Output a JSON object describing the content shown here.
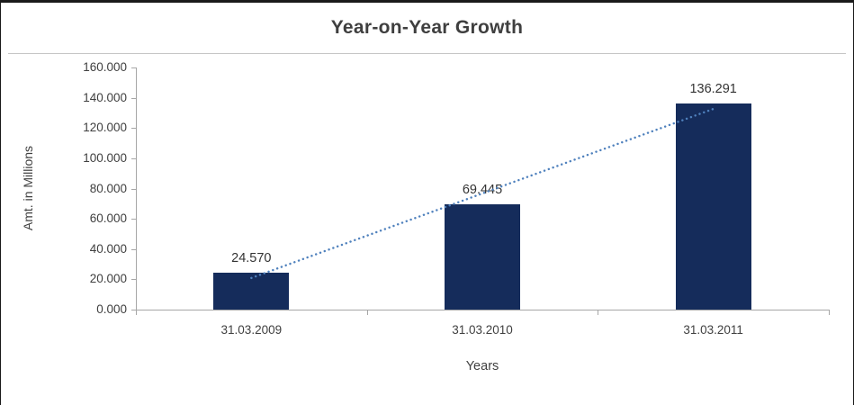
{
  "chart_data": {
    "type": "bar",
    "title": "Year-on-Year Growth",
    "categories": [
      "31.03.2009",
      "31.03.2010",
      "31.03.2011"
    ],
    "values": [
      24.57,
      69.445,
      136.291
    ],
    "data_labels": [
      "24.570",
      "69.445",
      "136.291"
    ],
    "xlabel": "Years",
    "ylabel": "Amt. in Millions",
    "ylim": [
      0,
      160
    ],
    "y_ticks": [
      "0.000",
      "20.000",
      "40.000",
      "60.000",
      "80.000",
      "100.000",
      "120.000",
      "140.000",
      "160.000"
    ],
    "grid": false,
    "legend": "none",
    "bar_color": "#152c5b",
    "trendline": {
      "type": "linear",
      "style": "dotted",
      "color": "#4f81bd"
    }
  }
}
